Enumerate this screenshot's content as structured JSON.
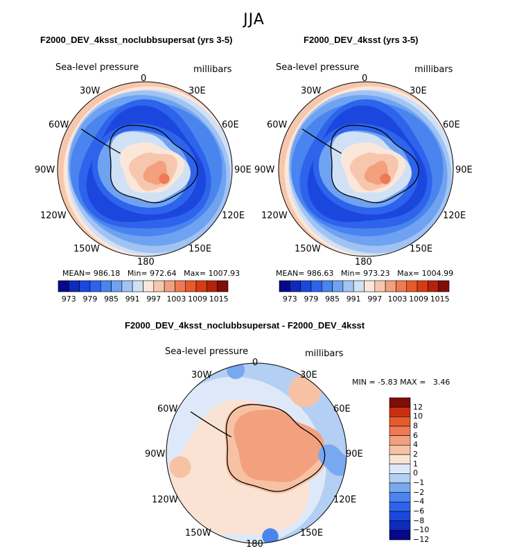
{
  "title": "JJA",
  "colors": {
    "levels": [
      "#08088a",
      "#0d2bbd",
      "#1c47de",
      "#2e64ec",
      "#4a84ef",
      "#6fa3f1",
      "#a1c3f3",
      "#d0e1f6",
      "#fbe7da",
      "#f7c7ad",
      "#f2a07e",
      "#ee7a55",
      "#e65a2c",
      "#d83b13",
      "#b3230c",
      "#800d08"
    ],
    "diff_levels": [
      "#08088a",
      "#0d2bbd",
      "#1c47de",
      "#2e64ec",
      "#4a84ef",
      "#78a9f0",
      "#b4cff4",
      "#dde9f8",
      "#fbe3d4",
      "#f7c2a4",
      "#f2a07e",
      "#ee7a55",
      "#e65a2c",
      "#c7300f",
      "#800d08"
    ],
    "land_outline": "#000000"
  },
  "panels": [
    {
      "id": "left",
      "title": "F2000_DEV_4ksst_noclubbsupersat (yrs 3-5)",
      "field_label": "Sea-level pressure",
      "units": "millibars",
      "stats": {
        "mean_label": "MEAN=",
        "mean": "986.18",
        "min_label": "Min=",
        "min": "972.64",
        "max_label": "Max=",
        "max": "1007.93"
      },
      "colorbar_ticks": [
        "973",
        "979",
        "985",
        "991",
        "997",
        "1003",
        "1009",
        "1015"
      ],
      "lon_labels": {
        "n": "0",
        "ne": "30E",
        "e1": "60E",
        "e": "90E",
        "e2": "120E",
        "se": "150E",
        "s": "180",
        "sw": "150W",
        "w2": "120W",
        "w": "90W",
        "w1": "60W",
        "nw": "30W"
      }
    },
    {
      "id": "right",
      "title": "F2000_DEV_4ksst (yrs 3-5)",
      "field_label": "Sea-level pressure",
      "units": "millibars",
      "stats": {
        "mean_label": "MEAN=",
        "mean": "986.63",
        "min_label": "Min=",
        "min": "973.23",
        "max_label": "Max=",
        "max": "1004.99"
      },
      "colorbar_ticks": [
        "973",
        "979",
        "985",
        "991",
        "997",
        "1003",
        "1009",
        "1015"
      ],
      "lon_labels": {
        "n": "0",
        "ne": "30E",
        "e1": "60E",
        "e": "90E",
        "e2": "120E",
        "se": "150E",
        "s": "180",
        "sw": "150W",
        "w2": "120W",
        "w": "90W",
        "w1": "60W",
        "nw": "30W"
      }
    },
    {
      "id": "diff",
      "title": "F2000_DEV_4ksst_noclubbsupersat - F2000_DEV_4ksst",
      "field_label": "Sea-level pressure",
      "units": "millibars",
      "stats": {
        "min_label": "MIN =",
        "min": "-5.83",
        "max_label": "MAX =",
        "max": "3.46"
      },
      "colorbar_ticks": [
        "12",
        "10",
        "8",
        "6",
        "4",
        "2",
        "1",
        "0",
        "−1",
        "−2",
        "−4",
        "−6",
        "−8",
        "−10",
        "−12"
      ],
      "lon_labels": {
        "n": "0",
        "ne": "30E",
        "e1": "60E",
        "e": "90E",
        "e2": "120E",
        "se": "150E",
        "s": "180",
        "sw": "150W",
        "w2": "120W",
        "w": "90W",
        "w1": "60W",
        "nw": "30W"
      }
    }
  ],
  "chart_data": [
    {
      "type": "heatmap",
      "projection": "south-polar-stereographic",
      "title": "F2000_DEV_4ksst_noclubbsupersat (yrs 3-5)",
      "variable": "Sea-level pressure",
      "units": "millibars",
      "mean": 986.18,
      "min": 972.64,
      "max": 1007.93,
      "contour_levels": [
        973,
        976,
        979,
        982,
        985,
        988,
        991,
        994,
        997,
        1000,
        1003,
        1006,
        1009,
        1012,
        1015
      ],
      "colorbar_labels": [
        973,
        979,
        985,
        991,
        997,
        1003,
        1009,
        1015
      ]
    },
    {
      "type": "heatmap",
      "projection": "south-polar-stereographic",
      "title": "F2000_DEV_4ksst (yrs 3-5)",
      "variable": "Sea-level pressure",
      "units": "millibars",
      "mean": 986.63,
      "min": 973.23,
      "max": 1004.99,
      "contour_levels": [
        973,
        976,
        979,
        982,
        985,
        988,
        991,
        994,
        997,
        1000,
        1003,
        1006,
        1009,
        1012,
        1015
      ],
      "colorbar_labels": [
        973,
        979,
        985,
        991,
        997,
        1003,
        1009,
        1015
      ]
    },
    {
      "type": "heatmap",
      "projection": "south-polar-stereographic",
      "title": "F2000_DEV_4ksst_noclubbsupersat - F2000_DEV_4ksst",
      "variable": "Sea-level pressure",
      "units": "millibars",
      "min": -5.83,
      "max": 3.46,
      "contour_levels": [
        -12,
        -10,
        -8,
        -6,
        -4,
        -2,
        -1,
        0,
        1,
        2,
        4,
        6,
        8,
        10,
        12
      ]
    }
  ]
}
